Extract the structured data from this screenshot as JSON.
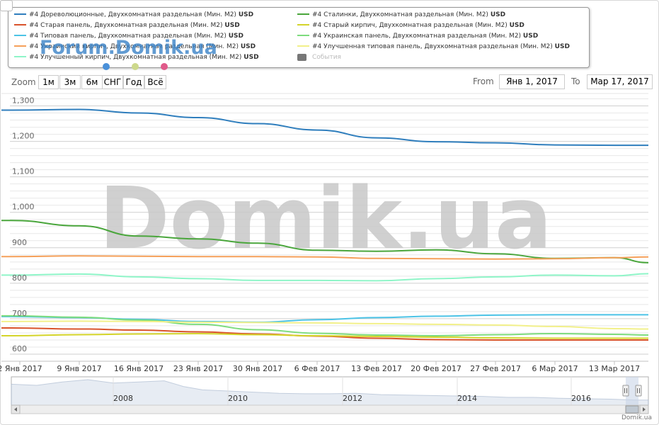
{
  "legend": {
    "items": [
      {
        "label": "#4 Дореволюционные, Двухкомнатная раздельная (Мин. М2)",
        "unit": "USD",
        "color": "#2f7ebd",
        "visible": true
      },
      {
        "label": "#4 Сталинки, Двухкомнатная раздельная (Мин. М2)",
        "unit": "USD",
        "color": "#4aa63c",
        "visible": true
      },
      {
        "label": "#4 Старая панель, Двухкомнатная раздельная (Мин. М2)",
        "unit": "USD",
        "color": "#d9532b",
        "visible": true
      },
      {
        "label": "#4 Старый кирпич, Двухкомнатная раздельная (Мин. М2)",
        "unit": "USD",
        "color": "#d4d42a",
        "visible": true
      },
      {
        "label": "#4 Типовая панель, Двухкомнатная раздельная (Мин. М2)",
        "unit": "USD",
        "color": "#4cc3e6",
        "visible": true
      },
      {
        "label": "#4 Украинская панель, Двухкомнатная раздельная (Мин. М2)",
        "unit": "USD",
        "color": "#7ddc7d",
        "visible": true
      },
      {
        "label": "#4 Украинский кирпич, Двухкомнатная раздельная (Мин. М2)",
        "unit": "USD",
        "color": "#f5a05a",
        "visible": true
      },
      {
        "label": "#4 Улучшенная типовая панель, Двухкомнатная раздельная (Мин. М2)",
        "unit": "USD",
        "color": "#f2f08a",
        "visible": true
      },
      {
        "label": "#4 Улучшенный кирпич, Двухкомнатная раздельная (Мин. М2)",
        "unit": "USD",
        "color": "#8ff5c8",
        "visible": true
      },
      {
        "label": "События",
        "unit": "",
        "color": "#777777",
        "visible": false
      }
    ]
  },
  "logo": {
    "text": "Forum.Domik.ua",
    "dot_colors": [
      "#4a90d9",
      "#cdd98c",
      "#e05a8a"
    ]
  },
  "zoom": {
    "label": "Zoom",
    "buttons": [
      "1м",
      "3м",
      "6м",
      "СНГ",
      "Год",
      "Всё"
    ]
  },
  "range": {
    "from_label": "From",
    "from_value": "Янв 1, 2017",
    "to_label": "To",
    "to_value": "Мар 17, 2017"
  },
  "watermark": "Domik.ua",
  "footer": "Domik.ua",
  "navigator": {
    "years": [
      "2008",
      "2010",
      "2012",
      "2014",
      "2016"
    ]
  },
  "chart_data": {
    "type": "line",
    "x_tick_labels": [
      "2 Янв 2017",
      "9 Янв 2017",
      "16 Янв 2017",
      "23 Янв 2017",
      "30 Янв 2017",
      "6 Фев 2017",
      "13 Фев 2017",
      "20 Фев 2017",
      "27 Фев 2017",
      "6 Мар 2017",
      "13 Мар 2017"
    ],
    "y_ticks": [
      600,
      700,
      800,
      900,
      1000,
      1100,
      1200,
      1300
    ],
    "y_tick_labels": [
      "600",
      "700",
      "800",
      "900",
      "1,000",
      "1,100",
      "1,200",
      "1,300"
    ],
    "ylim": [
      580,
      1335
    ],
    "x_day_range": [
      1,
      76
    ],
    "grid": true,
    "series": [
      {
        "name": "#4 Дореволюционные, Двухкомнатная раздельная (Мин. М2)",
        "color": "#2f7ebd",
        "points": [
          [
            1,
            1288
          ],
          [
            9,
            1290
          ],
          [
            16,
            1280
          ],
          [
            23,
            1267
          ],
          [
            30,
            1250
          ],
          [
            37,
            1232
          ],
          [
            44,
            1210
          ],
          [
            51,
            1199
          ],
          [
            58,
            1196
          ],
          [
            65,
            1190
          ],
          [
            72,
            1189
          ],
          [
            76,
            1189
          ]
        ]
      },
      {
        "name": "#4 Сталинки, Двухкомнатная раздельная (Мин. М2)",
        "color": "#4aa63c",
        "points": [
          [
            1,
            977
          ],
          [
            9,
            962
          ],
          [
            16,
            933
          ],
          [
            23,
            925
          ],
          [
            30,
            913
          ],
          [
            37,
            893
          ],
          [
            44,
            890
          ],
          [
            51,
            894
          ],
          [
            58,
            883
          ],
          [
            65,
            870
          ],
          [
            72,
            872
          ],
          [
            76,
            858
          ]
        ]
      },
      {
        "name": "#4 Украинский кирпич, Двухкомнатная раздельная (Мин. М2)",
        "color": "#f5a05a",
        "points": [
          [
            1,
            875
          ],
          [
            9,
            877
          ],
          [
            16,
            876
          ],
          [
            23,
            875
          ],
          [
            30,
            875
          ],
          [
            37,
            874
          ],
          [
            44,
            870
          ],
          [
            51,
            869
          ],
          [
            58,
            868
          ],
          [
            65,
            869
          ],
          [
            72,
            872
          ],
          [
            76,
            874
          ]
        ]
      },
      {
        "name": "#4 Улучшенный кирпич, Двухкомнатная раздельная (Мин. М2)",
        "color": "#8ff5c8",
        "points": [
          [
            1,
            823
          ],
          [
            9,
            826
          ],
          [
            16,
            818
          ],
          [
            23,
            813
          ],
          [
            30,
            808
          ],
          [
            37,
            808
          ],
          [
            44,
            807
          ],
          [
            51,
            813
          ],
          [
            58,
            818
          ],
          [
            65,
            823
          ],
          [
            72,
            821
          ],
          [
            76,
            827
          ]
        ]
      },
      {
        "name": "#4 Типовая панель, Двухкомнатная раздельная (Мин. М2)",
        "color": "#4cc3e6",
        "points": [
          [
            1,
            706
          ],
          [
            9,
            703
          ],
          [
            16,
            698
          ],
          [
            23,
            692
          ],
          [
            30,
            690
          ],
          [
            37,
            697
          ],
          [
            44,
            703
          ],
          [
            51,
            707
          ],
          [
            58,
            710
          ],
          [
            65,
            711
          ],
          [
            72,
            711
          ],
          [
            76,
            711
          ]
        ]
      },
      {
        "name": "#4 Украинская панель, Двухкомнатная раздельная (Мин. М2)",
        "color": "#7ddc7d",
        "points": [
          [
            1,
            708
          ],
          [
            9,
            704
          ],
          [
            16,
            696
          ],
          [
            23,
            684
          ],
          [
            30,
            669
          ],
          [
            37,
            659
          ],
          [
            44,
            654
          ],
          [
            51,
            652
          ],
          [
            58,
            655
          ],
          [
            65,
            658
          ],
          [
            72,
            656
          ],
          [
            76,
            654
          ]
        ]
      },
      {
        "name": "#4 Улучшенная типовая панель, Двухкомнатная раздельная (Мин. М2)",
        "color": "#f2f08a",
        "points": [
          [
            1,
            692
          ],
          [
            9,
            693
          ],
          [
            16,
            692
          ],
          [
            23,
            690
          ],
          [
            30,
            689
          ],
          [
            37,
            688
          ],
          [
            44,
            686
          ],
          [
            51,
            684
          ],
          [
            58,
            682
          ],
          [
            65,
            678
          ],
          [
            72,
            672
          ],
          [
            76,
            671
          ]
        ]
      },
      {
        "name": "#4 Старая панель, Двухкомнатная раздельная (Мин. М2)",
        "color": "#d9532b",
        "points": [
          [
            1,
            674
          ],
          [
            9,
            671
          ],
          [
            16,
            668
          ],
          [
            23,
            663
          ],
          [
            30,
            657
          ],
          [
            37,
            651
          ],
          [
            44,
            645
          ],
          [
            51,
            641
          ],
          [
            58,
            640
          ],
          [
            65,
            640
          ],
          [
            72,
            640
          ],
          [
            76,
            640
          ]
        ]
      },
      {
        "name": "#4 Старый кирпич, Двухкомнатная раздельная (Мин. М2)",
        "color": "#d4d42a",
        "points": [
          [
            1,
            652
          ],
          [
            9,
            655
          ],
          [
            16,
            657
          ],
          [
            23,
            658
          ],
          [
            30,
            655
          ],
          [
            37,
            652
          ],
          [
            44,
            650
          ],
          [
            51,
            648
          ],
          [
            58,
            646
          ],
          [
            65,
            645
          ],
          [
            72,
            645
          ],
          [
            76,
            645
          ]
        ]
      }
    ]
  }
}
